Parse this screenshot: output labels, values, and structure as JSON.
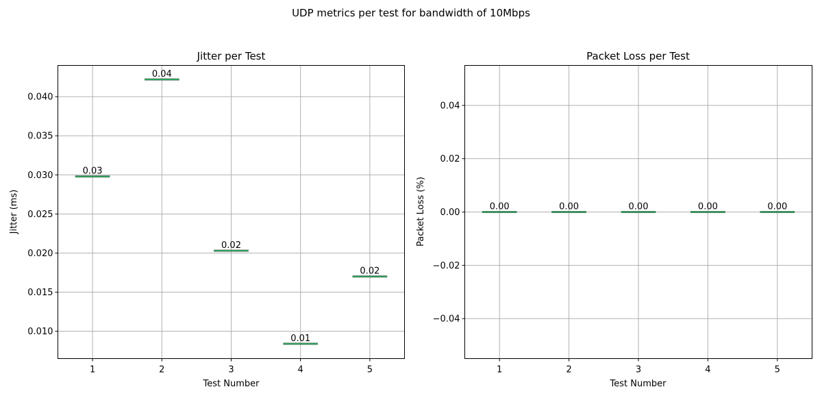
{
  "figure_title": "UDP metrics per test for bandwidth of 10Mbps",
  "chart_data": [
    {
      "type": "box",
      "title": "Jitter per Test",
      "xlabel": "Test Number",
      "ylabel": "Jitter (ms)",
      "categories": [
        "1",
        "2",
        "3",
        "4",
        "5"
      ],
      "values": [
        0.0298,
        0.0422,
        0.0203,
        0.0084,
        0.017
      ],
      "data_labels": [
        "0.03",
        "0.04",
        "0.02",
        "0.01",
        "0.02"
      ],
      "yticks": [
        0.01,
        0.015,
        0.02,
        0.025,
        0.03,
        0.035,
        0.04
      ],
      "ytick_labels": [
        "0.010",
        "0.015",
        "0.020",
        "0.025",
        "0.030",
        "0.035",
        "0.040"
      ],
      "ylim": [
        0.0065,
        0.044
      ],
      "grid": true,
      "color": "#2ca05a"
    },
    {
      "type": "box",
      "title": "Packet Loss per Test",
      "xlabel": "Test Number",
      "ylabel": "Packet Loss (%)",
      "categories": [
        "1",
        "2",
        "3",
        "4",
        "5"
      ],
      "values": [
        0,
        0,
        0,
        0,
        0
      ],
      "data_labels": [
        "0.00",
        "0.00",
        "0.00",
        "0.00",
        "0.00"
      ],
      "yticks": [
        -0.04,
        -0.02,
        0.0,
        0.02,
        0.04
      ],
      "ytick_labels": [
        "−0.04",
        "−0.02",
        "0.00",
        "0.02",
        "0.04"
      ],
      "ylim": [
        -0.055,
        0.055
      ],
      "grid": true,
      "color": "#2ca05a"
    }
  ]
}
